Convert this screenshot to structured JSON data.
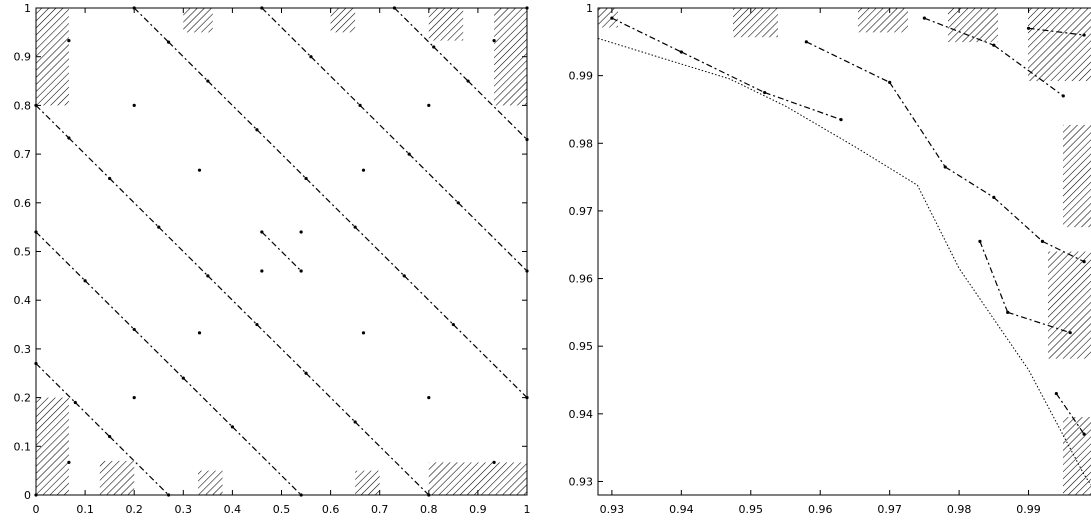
{
  "chart_data": [
    {
      "type": "scatter",
      "title": "",
      "xlabel": "",
      "ylabel": "",
      "xlim": [
        0,
        1
      ],
      "ylim": [
        0,
        1
      ],
      "xticks": [
        "0",
        "0.1",
        "0.2",
        "0.3",
        "0.4",
        "0.5",
        "0.6",
        "0.7",
        "0.8",
        "0.9",
        "1"
      ],
      "yticks": [
        "0",
        "0.1",
        "0.2",
        "0.3",
        "0.4",
        "0.5",
        "0.6",
        "0.7",
        "0.8",
        "0.9",
        "1"
      ],
      "grid": false,
      "legend": "none",
      "marker_color": "#000000",
      "series": [
        {
          "points": [
            [
              0.0,
              0.0
            ],
            [
              0.067,
              0.067
            ],
            [
              0.2,
              0.2
            ],
            [
              0.333,
              0.333
            ],
            [
              0.46,
              0.46
            ],
            [
              0.54,
              0.54
            ],
            [
              0.667,
              0.667
            ],
            [
              0.8,
              0.8
            ],
            [
              0.933,
              0.933
            ],
            [
              1.0,
              1.0
            ],
            [
              0.067,
              0.933
            ],
            [
              0.933,
              0.067
            ],
            [
              0.2,
              0.8
            ],
            [
              0.8,
              0.2
            ],
            [
              0.333,
              0.667
            ],
            [
              0.667,
              0.333
            ],
            [
              0.46,
              0.54
            ],
            [
              0.54,
              0.46
            ],
            [
              0.0,
              0.8
            ],
            [
              0.067,
              0.733
            ],
            [
              0.15,
              0.65
            ],
            [
              0.25,
              0.55
            ],
            [
              0.35,
              0.45
            ],
            [
              0.45,
              0.35
            ],
            [
              0.55,
              0.25
            ],
            [
              0.65,
              0.15
            ],
            [
              0.8,
              0.0
            ],
            [
              0.2,
              1.0
            ],
            [
              0.27,
              0.93
            ],
            [
              0.35,
              0.85
            ],
            [
              0.45,
              0.75
            ],
            [
              0.55,
              0.65
            ],
            [
              0.65,
              0.55
            ],
            [
              0.75,
              0.45
            ],
            [
              0.85,
              0.35
            ],
            [
              1.0,
              0.2
            ],
            [
              0.0,
              0.54
            ],
            [
              0.1,
              0.44
            ],
            [
              0.2,
              0.34
            ],
            [
              0.3,
              0.24
            ],
            [
              0.4,
              0.14
            ],
            [
              0.54,
              0.0
            ],
            [
              0.46,
              1.0
            ],
            [
              0.56,
              0.9
            ],
            [
              0.66,
              0.8
            ],
            [
              0.76,
              0.7
            ],
            [
              0.86,
              0.6
            ],
            [
              1.0,
              0.46
            ],
            [
              0.0,
              0.27
            ],
            [
              0.08,
              0.19
            ],
            [
              0.15,
              0.12
            ],
            [
              0.27,
              0.0
            ],
            [
              0.73,
              1.0
            ],
            [
              0.81,
              0.92
            ],
            [
              0.88,
              0.85
            ],
            [
              1.0,
              0.73
            ]
          ]
        }
      ]
    },
    {
      "type": "scatter",
      "title": "",
      "xlabel": "",
      "ylabel": "",
      "xlim": [
        0.928,
        1.0
      ],
      "ylim": [
        0.928,
        1.0
      ],
      "xticks": [
        "0.93",
        "0.94",
        "0.95",
        "0.96",
        "0.97",
        "0.98",
        "0.99"
      ],
      "yticks": [
        "0.93",
        "0.94",
        "0.95",
        "0.96",
        "0.97",
        "0.98",
        "0.99",
        "1"
      ],
      "grid": false,
      "legend": "none",
      "marker_color": "#000000",
      "series": [
        {
          "line": "dotted",
          "points": [
            [
              0.928,
              0.9955
            ],
            [
              0.947,
              0.9895
            ],
            [
              0.955,
              0.9855
            ],
            [
              0.965,
              0.9795
            ],
            [
              0.974,
              0.9738
            ],
            [
              0.98,
              0.9615
            ],
            [
              0.99,
              0.9465
            ],
            [
              0.998,
              0.931
            ],
            [
              1.0,
              0.928
            ]
          ]
        },
        {
          "points": [
            [
              0.93,
              0.9985
            ],
            [
              0.94,
              0.9935
            ],
            [
              0.952,
              0.9875
            ],
            [
              0.963,
              0.9835
            ],
            [
              0.958,
              0.995
            ],
            [
              0.97,
              0.989
            ],
            [
              0.978,
              0.9765
            ],
            [
              0.985,
              0.972
            ],
            [
              0.992,
              0.9655
            ],
            [
              0.998,
              0.9625
            ],
            [
              0.975,
              0.9985
            ],
            [
              0.985,
              0.9945
            ],
            [
              0.995,
              0.987
            ],
            [
              0.983,
              0.9655
            ],
            [
              0.987,
              0.955
            ],
            [
              0.996,
              0.952
            ],
            [
              0.994,
              0.943
            ],
            [
              0.998,
              0.937
            ],
            [
              0.99,
              0.997
            ],
            [
              0.998,
              0.996
            ]
          ]
        }
      ]
    }
  ]
}
